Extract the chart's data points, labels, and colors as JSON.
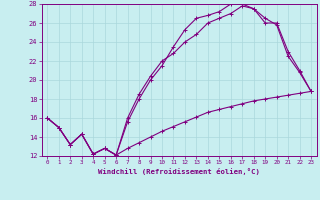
{
  "xlabel": "Windchill (Refroidissement éolien,°C)",
  "bg_color": "#c8eef0",
  "grid_color": "#aad8dc",
  "line_color": "#800080",
  "xlim": [
    -0.5,
    23.5
  ],
  "ylim": [
    12,
    28
  ],
  "xticks": [
    0,
    1,
    2,
    3,
    4,
    5,
    6,
    7,
    8,
    9,
    10,
    11,
    12,
    13,
    14,
    15,
    16,
    17,
    18,
    19,
    20,
    21,
    22,
    23
  ],
  "yticks": [
    12,
    14,
    16,
    18,
    20,
    22,
    24,
    26,
    28
  ],
  "line1_x": [
    0,
    1,
    2,
    3,
    4,
    5,
    6,
    7,
    8,
    9,
    10,
    11,
    12,
    13,
    14,
    15,
    16,
    17,
    18,
    19,
    20,
    21,
    22,
    23
  ],
  "line1_y": [
    16.0,
    15.0,
    13.2,
    14.3,
    12.2,
    12.8,
    12.1,
    12.8,
    13.4,
    14.0,
    14.6,
    15.1,
    15.6,
    16.1,
    16.6,
    16.9,
    17.2,
    17.5,
    17.8,
    18.0,
    18.2,
    18.4,
    18.6,
    18.8
  ],
  "line2_x": [
    0,
    1,
    2,
    3,
    4,
    5,
    6,
    7,
    8,
    9,
    10,
    11,
    12,
    13,
    14,
    15,
    16,
    17,
    18,
    19,
    20,
    21,
    22,
    23
  ],
  "line2_y": [
    16.0,
    15.0,
    13.2,
    14.3,
    12.2,
    12.8,
    12.1,
    16.0,
    18.5,
    20.4,
    22.0,
    22.8,
    24.0,
    24.8,
    26.0,
    26.5,
    27.0,
    27.8,
    27.5,
    26.5,
    25.8,
    22.5,
    20.8,
    18.8
  ],
  "line3_x": [
    0,
    1,
    2,
    3,
    4,
    5,
    6,
    7,
    8,
    9,
    10,
    11,
    12,
    13,
    14,
    15,
    16,
    17,
    18,
    19,
    20,
    21,
    22,
    23
  ],
  "line3_y": [
    16.0,
    15.0,
    13.2,
    14.3,
    12.2,
    12.8,
    12.1,
    15.6,
    18.0,
    20.0,
    21.5,
    23.5,
    25.3,
    26.5,
    26.8,
    27.2,
    28.0,
    28.0,
    27.5,
    26.0,
    26.0,
    23.0,
    21.0,
    18.8
  ]
}
